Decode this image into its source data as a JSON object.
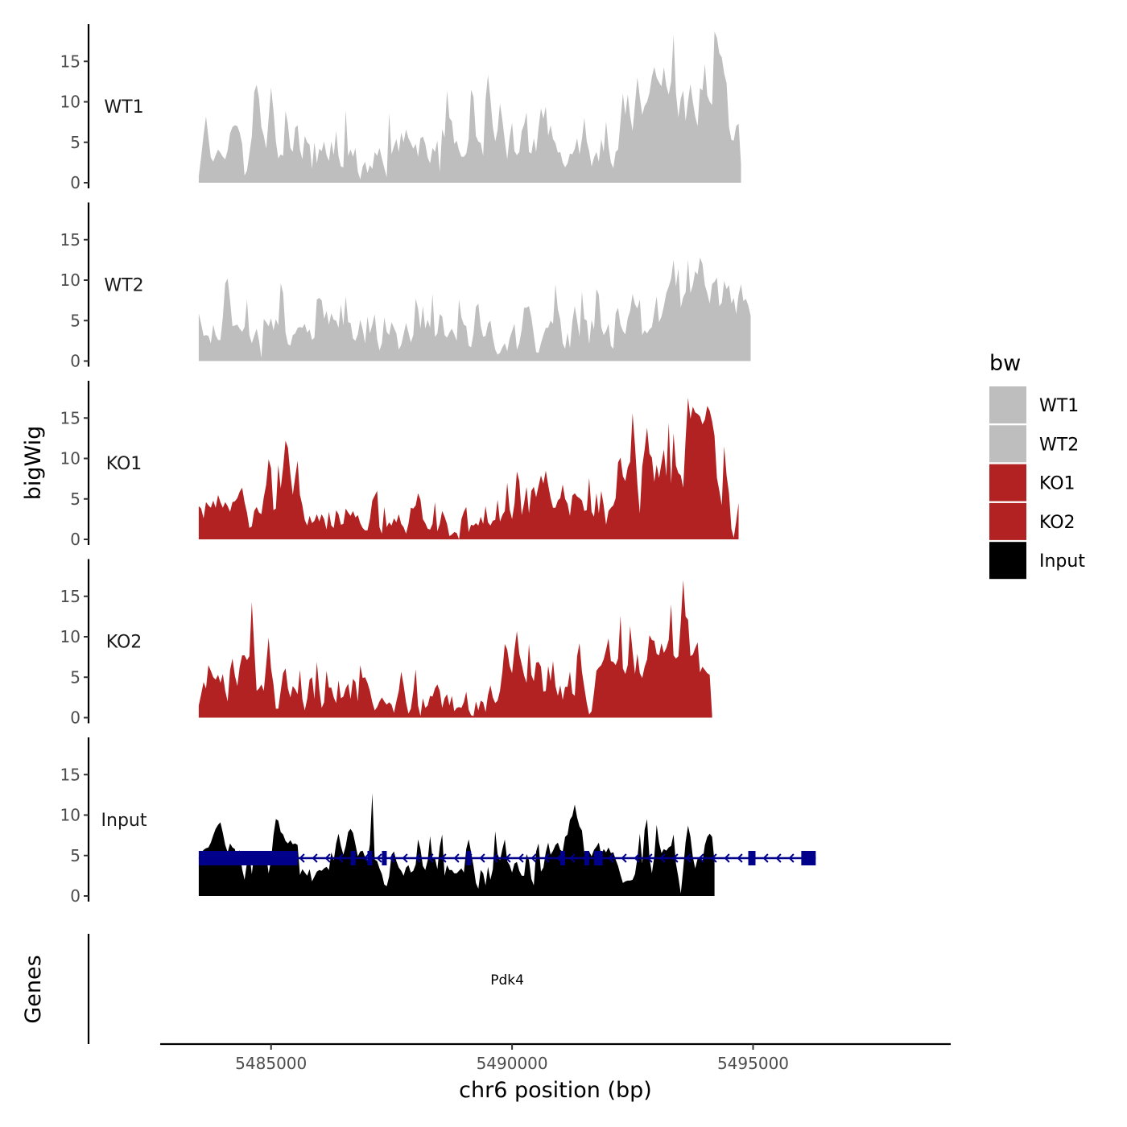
{
  "chart_data": {
    "type": "area",
    "title": "",
    "xlabel": "chr6 position (bp)",
    "ylabel": "bigWig",
    "genes_label": "Genes",
    "chromosome": "chr6",
    "xlim": [
      5482700,
      5499100
    ],
    "ylim": [
      0,
      19
    ],
    "x_ticks": [
      5485000,
      5490000,
      5495000
    ],
    "x_tick_labels": [
      "5485000",
      "5490000",
      "5495000"
    ],
    "y_ticks": [
      0,
      5,
      10,
      15
    ],
    "y_tick_labels": [
      "0",
      "5",
      "10",
      "15"
    ],
    "legend": {
      "title": "bw",
      "position": "right",
      "entries": [
        {
          "name": "WT1",
          "color": "#bebebe"
        },
        {
          "name": "WT2",
          "color": "#bebebe"
        },
        {
          "name": "KO1",
          "color": "#b22222"
        },
        {
          "name": "KO2",
          "color": "#b22222"
        },
        {
          "name": "Input",
          "color": "#000000"
        }
      ]
    },
    "x_start": 5483500,
    "x_step": 50,
    "series": [
      {
        "name": "WT1",
        "color": "#bebebe",
        "values": [
          0.8,
          3.2,
          5.9,
          8.2,
          5.6,
          3.1,
          2.6,
          3.4,
          4.1,
          3.7,
          3.2,
          2.9,
          4.0,
          6.1,
          6.9,
          7.1,
          7.0,
          6.2,
          4.8,
          0.9,
          1.5,
          3.6,
          5.7,
          11.2,
          12.1,
          10.4,
          6.9,
          5.8,
          4.2,
          7.9,
          11.8,
          8.9,
          5.1,
          3.0,
          3.5,
          3.3,
          8.9,
          7.2,
          4.3,
          3.8,
          6.8,
          7.1,
          4.1,
          2.9,
          5.8,
          5.0,
          4.7,
          1.7,
          5.0,
          2.4,
          4.2,
          3.9,
          5.1,
          3.4,
          2.7,
          5.1,
          3.4,
          6.4,
          3.3,
          2.0,
          1.9,
          9.0,
          3.3,
          4.1,
          3.2,
          4.3,
          1.4,
          0.4,
          2.0,
          2.6,
          1.2,
          2.2,
          1.7,
          3.8,
          3.3,
          4.3,
          3.0,
          1.8,
          0.7,
          8.6,
          3.5,
          4.5,
          5.4,
          3.8,
          6.2,
          5.0,
          6.6,
          5.5,
          4.9,
          4.2,
          4.8,
          3.2,
          5.5,
          5.7,
          4.8,
          3.1,
          2.4,
          4.3,
          3.8,
          5.2,
          1.3,
          6.6,
          5.6,
          11.4,
          8.0,
          7.6,
          4.8,
          5.2,
          4.0,
          3.2,
          3.2,
          3.6,
          5.4,
          11.5,
          10.6,
          5.8,
          5.1,
          4.9,
          3.3,
          10.3,
          13.3,
          10.4,
          6.9,
          5.1,
          6.5,
          9.8,
          7.7,
          5.2,
          2.9,
          5.6,
          7.4,
          3.9,
          3.4,
          3.8,
          6.4,
          7.2,
          8.7,
          3.8,
          3.6,
          5.5,
          3.8,
          6.8,
          9.2,
          7.9,
          9.4,
          5.8,
          7.1,
          5.4,
          4.9,
          3.7,
          3.8,
          2.5,
          1.9,
          2.4,
          3.6,
          3.5,
          4.2,
          5.5,
          3.5,
          5.4,
          8.0,
          5.1,
          3.9,
          2.0,
          3.1,
          3.8,
          2.6,
          5.4,
          3.8,
          7.6,
          4.5,
          2.5,
          1.8,
          3.8,
          4.1,
          7.6,
          11.0,
          8.4,
          10.9,
          8.3,
          6.4,
          9.7,
          13.0,
          10.6,
          8.4,
          9.5,
          10.0,
          11.1,
          13.1,
          14.3,
          13.0,
          12.4,
          11.9,
          14.3,
          12.0,
          10.9,
          12.5,
          18.3,
          11.1,
          8.1,
          10.4,
          11.4,
          7.6,
          10.1,
          12.2,
          10.0,
          8.2,
          7.0,
          11.7,
          11.4,
          14.7,
          10.8,
          10.0,
          9.6,
          18.7,
          17.9,
          16.0,
          15.5,
          13.5,
          12.3,
          6.9,
          5.3,
          5.2,
          7.0,
          7.3,
          2.3
        ]
      },
      {
        "name": "WT2",
        "color": "#bebebe",
        "values": [
          5.9,
          4.6,
          3.1,
          3.2,
          3.1,
          2.2,
          4.5,
          3.2,
          2.6,
          2.6,
          5.4,
          9.6,
          10.2,
          7.5,
          4.3,
          4.4,
          4.5,
          4.0,
          3.6,
          4.2,
          7.6,
          3.2,
          2.2,
          3.1,
          4.0,
          2.5,
          0.4,
          5.2,
          4.8,
          4.3,
          5.3,
          3.8,
          5.2,
          4.4,
          9.6,
          8.4,
          3.5,
          2.1,
          1.9,
          3.2,
          3.4,
          4.1,
          4.2,
          4.1,
          4.6,
          3.5,
          3.9,
          2.6,
          2.9,
          7.6,
          7.8,
          7.5,
          5.2,
          6.2,
          4.5,
          5.9,
          5.1,
          5.0,
          4.1,
          7.0,
          4.4,
          8.0,
          4.8,
          4.7,
          2.8,
          2.5,
          3.3,
          5.1,
          3.9,
          2.2,
          5.5,
          3.4,
          4.5,
          5.8,
          2.7,
          1.3,
          2.2,
          5.4,
          3.6,
          3.2,
          4.8,
          4.1,
          3.4,
          1.4,
          2.0,
          3.3,
          4.7,
          3.5,
          2.3,
          3.2,
          7.7,
          6.5,
          4.0,
          6.8,
          4.0,
          5.1,
          4.1,
          8.3,
          3.0,
          3.4,
          5.8,
          5.5,
          3.2,
          2.9,
          3.5,
          4.0,
          3.3,
          2.5,
          7.6,
          5.4,
          4.5,
          4.3,
          1.9,
          1.7,
          3.4,
          6.7,
          7.1,
          4.3,
          3.0,
          3.1,
          4.6,
          5.0,
          2.9,
          1.4,
          0.8,
          1.0,
          1.7,
          2.2,
          1.2,
          2.8,
          3.7,
          4.6,
          1.4,
          2.2,
          3.9,
          6.6,
          6.6,
          6.8,
          5.4,
          3.2,
          1.1,
          1.0,
          2.2,
          3.2,
          4.1,
          4.1,
          5.0,
          4.6,
          9.5,
          6.4,
          5.1,
          2.2,
          1.5,
          3.5,
          1.6,
          4.9,
          6.8,
          5.0,
          3.0,
          8.6,
          5.2,
          5.0,
          2.1,
          5.1,
          3.9,
          8.9,
          8.2,
          4.2,
          3.2,
          3.7,
          4.6,
          1.9,
          1.5,
          5.9,
          6.6,
          4.5,
          3.7,
          3.3,
          5.3,
          6.2,
          8.3,
          7.0,
          6.5,
          7.6,
          3.2,
          3.8,
          3.4,
          3.9,
          4.2,
          6.1,
          8.0,
          4.8,
          5.5,
          6.8,
          8.4,
          9.2,
          10.2,
          12.5,
          9.2,
          11.4,
          6.6,
          7.9,
          8.5,
          12.5,
          8.4,
          9.4,
          11.1,
          10.7,
          12.8,
          12.0,
          9.4,
          8.4,
          7.1,
          9.5,
          9.8,
          10.3,
          6.8,
          7.2,
          9.9,
          8.9,
          9.4,
          7.1,
          7.8,
          5.8,
          8.2,
          9.5,
          7.4,
          7.7,
          6.9,
          5.6
        ]
      },
      {
        "name": "KO1",
        "color": "#b22222",
        "values": [
          4.1,
          3.8,
          2.6,
          4.6,
          4.2,
          3.9,
          4.8,
          3.9,
          5.5,
          4.6,
          3.9,
          4.6,
          4.1,
          3.4,
          4.6,
          4.7,
          5.1,
          5.9,
          6.4,
          4.6,
          3.3,
          1.4,
          1.6,
          3.5,
          4.0,
          3.3,
          3.1,
          5.2,
          6.8,
          9.9,
          8.8,
          3.6,
          3.8,
          9.2,
          6.3,
          8.9,
          12.2,
          11.3,
          8.1,
          5.5,
          7.7,
          9.7,
          5.5,
          4.2,
          2.4,
          1.7,
          2.9,
          2.0,
          2.3,
          3.1,
          2.2,
          3.1,
          2.5,
          1.2,
          3.4,
          1.7,
          1.4,
          3.6,
          3.1,
          1.8,
          1.9,
          3.8,
          3.3,
          2.9,
          3.5,
          2.7,
          3.0,
          2.0,
          1.4,
          1.1,
          1.1,
          2.5,
          4.8,
          5.4,
          6.0,
          1.5,
          0.7,
          4.0,
          1.5,
          2.1,
          1.7,
          2.6,
          2.1,
          3.1,
          1.9,
          1.5,
          0.7,
          1.9,
          3.9,
          3.8,
          4.2,
          5.7,
          4.9,
          2.5,
          2.0,
          1.3,
          1.2,
          1.9,
          4.6,
          1.0,
          1.9,
          3.5,
          2.8,
          1.9,
          0.4,
          0.6,
          0.9,
          0.8,
          0.0,
          2.5,
          3.4,
          4.0,
          0.9,
          1.8,
          1.7,
          2.0,
          1.7,
          2.8,
          1.9,
          4.1,
          2.1,
          1.7,
          2.3,
          2.4,
          4.9,
          2.2,
          3.0,
          3.5,
          7.0,
          3.7,
          2.5,
          4.4,
          8.4,
          7.2,
          3.0,
          4.5,
          6.5,
          3.2,
          6.0,
          6.5,
          5.2,
          6.6,
          7.9,
          6.9,
          8.5,
          6.7,
          5.1,
          3.9,
          3.9,
          4.8,
          5.1,
          6.8,
          5.0,
          4.4,
          2.9,
          5.4,
          5.7,
          5.3,
          5.1,
          4.8,
          3.5,
          3.6,
          7.6,
          3.4,
          2.8,
          5.7,
          3.2,
          6.0,
          4.2,
          1.8,
          3.5,
          3.9,
          4.2,
          5.1,
          9.5,
          10.1,
          7.8,
          7.2,
          8.9,
          9.6,
          15.6,
          11.6,
          6.8,
          3.2,
          9.0,
          11.1,
          13.8,
          10.6,
          10.1,
          7.1,
          9.2,
          7.6,
          9.4,
          11.1,
          7.8,
          14.4,
          6.9,
          13.1,
          9.1,
          8.2,
          7.9,
          6.4,
          12.4,
          17.5,
          14.9,
          16.4,
          15.7,
          15.5,
          15.2,
          14.2,
          14.8,
          16.5,
          15.9,
          14.6,
          12.8,
          7.6,
          6.0,
          4.2,
          11.5,
          7.9,
          5.7,
          1.3,
          0.2,
          2.2,
          4.5
        ]
      },
      {
        "name": "KO2",
        "color": "#b22222",
        "values": [
          1.5,
          2.9,
          4.4,
          3.6,
          6.5,
          5.8,
          5.0,
          4.7,
          5.3,
          4.3,
          5.4,
          3.3,
          2.0,
          5.9,
          7.3,
          5.2,
          3.9,
          6.3,
          7.7,
          7.7,
          7.1,
          7.6,
          14.3,
          8.7,
          3.3,
          3.6,
          4.1,
          3.3,
          6.6,
          9.9,
          6.1,
          4.1,
          1.1,
          1.1,
          3.3,
          5.5,
          6.1,
          3.6,
          2.5,
          3.9,
          3.5,
          2.9,
          5.9,
          2.3,
          0.9,
          2.3,
          4.7,
          5.0,
          2.3,
          6.9,
          3.5,
          1.2,
          1.9,
          5.8,
          3.7,
          3.7,
          2.5,
          1.8,
          4.6,
          2.4,
          2.6,
          3.6,
          4.2,
          2.3,
          4.8,
          4.4,
          2.0,
          6.5,
          4.9,
          5.0,
          4.3,
          3.3,
          1.9,
          0.9,
          1.3,
          2.0,
          2.5,
          2.0,
          1.6,
          1.9,
          1.6,
          0.6,
          2.0,
          3.3,
          5.7,
          4.0,
          1.9,
          0.5,
          1.1,
          3.2,
          6.0,
          1.5,
          0.2,
          2.4,
          1.2,
          1.5,
          2.7,
          2.6,
          3.6,
          4.1,
          3.3,
          1.2,
          2.4,
          2.9,
          1.5,
          2.7,
          0.8,
          1.2,
          1.3,
          1.2,
          1.9,
          3.2,
          1.0,
          0.3,
          0.2,
          2.0,
          0.9,
          2.1,
          1.9,
          0.7,
          2.8,
          4.0,
          2.5,
          1.8,
          2.1,
          3.3,
          5.7,
          9.1,
          8.4,
          6.4,
          5.5,
          8.4,
          10.7,
          7.9,
          6.6,
          5.2,
          4.3,
          9.1,
          5.3,
          4.5,
          6.8,
          6.9,
          6.3,
          3.2,
          3.3,
          6.4,
          4.5,
          7.0,
          3.9,
          2.7,
          4.0,
          2.2,
          3.8,
          3.8,
          5.7,
          3.0,
          2.7,
          7.6,
          9.2,
          5.7,
          3.7,
          1.8,
          0.4,
          0.8,
          3.1,
          5.8,
          6.2,
          6.5,
          7.2,
          8.4,
          9.8,
          7.0,
          6.9,
          6.5,
          7.3,
          12.6,
          6.1,
          5.4,
          6.5,
          11.3,
          8.2,
          5.4,
          7.9,
          5.5,
          4.9,
          6.3,
          7.2,
          10.2,
          9.6,
          9.5,
          7.9,
          7.7,
          9.2,
          8.0,
          8.6,
          9.6,
          14.0,
          7.7,
          7.3,
          7.6,
          11.8,
          17.0,
          12.5,
          12.1,
          7.6,
          7.8,
          8.6,
          9.3,
          5.6,
          6.3,
          5.9,
          5.5,
          5.3,
          0.3
        ]
      },
      {
        "name": "Input",
        "color": "#000000",
        "values": [
          3.8,
          5.3,
          5.7,
          5.9,
          6.0,
          6.6,
          7.5,
          8.3,
          8.8,
          9.1,
          7.8,
          6.3,
          5.4,
          6.5,
          6.0,
          5.8,
          4.3,
          5.7,
          3.3,
          2.0,
          4.1,
          5.3,
          2.7,
          5.2,
          4.6,
          4.4,
          4.3,
          4.8,
          5.0,
          2.8,
          4.4,
          7.5,
          9.5,
          9.3,
          7.9,
          7.6,
          6.8,
          6.5,
          6.9,
          6.4,
          6.5,
          6.3,
          2.6,
          3.3,
          2.9,
          2.5,
          3.3,
          1.8,
          2.4,
          3.0,
          3.2,
          3.1,
          3.4,
          3.6,
          3.2,
          5.4,
          4.4,
          6.5,
          7.7,
          6.2,
          5.1,
          6.2,
          7.9,
          8.3,
          7.8,
          6.4,
          4.9,
          5.5,
          5.6,
          4.8,
          4.4,
          6.4,
          12.7,
          4.5,
          4.3,
          3.4,
          2.7,
          1.4,
          1.2,
          2.4,
          5.1,
          5.5,
          4.3,
          3.5,
          3.1,
          2.5,
          3.5,
          3.8,
          2.9,
          3.1,
          3.9,
          7.0,
          5.8,
          3.7,
          3.2,
          4.4,
          7.4,
          4.6,
          4.7,
          3.3,
          6.1,
          7.6,
          2.5,
          3.8,
          3.2,
          3.2,
          2.8,
          2.8,
          3.1,
          3.4,
          2.9,
          5.8,
          7.0,
          5.4,
          3.7,
          1.6,
          0.9,
          3.2,
          2.8,
          1.3,
          3.6,
          2.0,
          3.3,
          8.0,
          5.2,
          4.4,
          5.8,
          7.0,
          4.3,
          3.8,
          2.9,
          4.0,
          4.2,
          3.1,
          2.5,
          2.5,
          5.2,
          4.4,
          2.1,
          1.3,
          5.5,
          6.5,
          3.0,
          3.5,
          5.4,
          6.6,
          5.1,
          5.6,
          6.3,
          6.6,
          5.7,
          5.5,
          7.3,
          7.6,
          9.4,
          9.9,
          11.3,
          9.7,
          8.6,
          8.1,
          5.4,
          4.2,
          5.5,
          4.9,
          5.7,
          6.1,
          6.6,
          5.0,
          5.8,
          5.4,
          6.0,
          5.3,
          5.4,
          4.5,
          3.7,
          2.6,
          1.6,
          1.8,
          1.9,
          1.9,
          2.0,
          2.7,
          4.7,
          7.7,
          4.0,
          8.2,
          9.5,
          4.7,
          2.8,
          4.9,
          8.8,
          6.6,
          5.3,
          5.8,
          5.6,
          6.0,
          6.2,
          7.6,
          4.0,
          2.3,
          0.3,
          3.3,
          6.7,
          8.7,
          7.3,
          4.8,
          3.4,
          4.6,
          4.9,
          4.2,
          6.3,
          7.3,
          7.7,
          7.3,
          4.2
        ]
      }
    ],
    "genes": [
      {
        "name": "Pdk4",
        "strand": "-",
        "color": "#00008b",
        "start": 5483500,
        "end": 5496300,
        "exons": [
          [
            5483500,
            5485550
          ],
          [
            5486650,
            5486750
          ],
          [
            5487000,
            5487100
          ],
          [
            5487300,
            5487380
          ],
          [
            5489050,
            5489130
          ],
          [
            5491000,
            5491080
          ],
          [
            5491500,
            5491580
          ],
          [
            5491700,
            5491880
          ],
          [
            5494900,
            5495050
          ],
          [
            5496000,
            5496300
          ]
        ]
      }
    ]
  }
}
